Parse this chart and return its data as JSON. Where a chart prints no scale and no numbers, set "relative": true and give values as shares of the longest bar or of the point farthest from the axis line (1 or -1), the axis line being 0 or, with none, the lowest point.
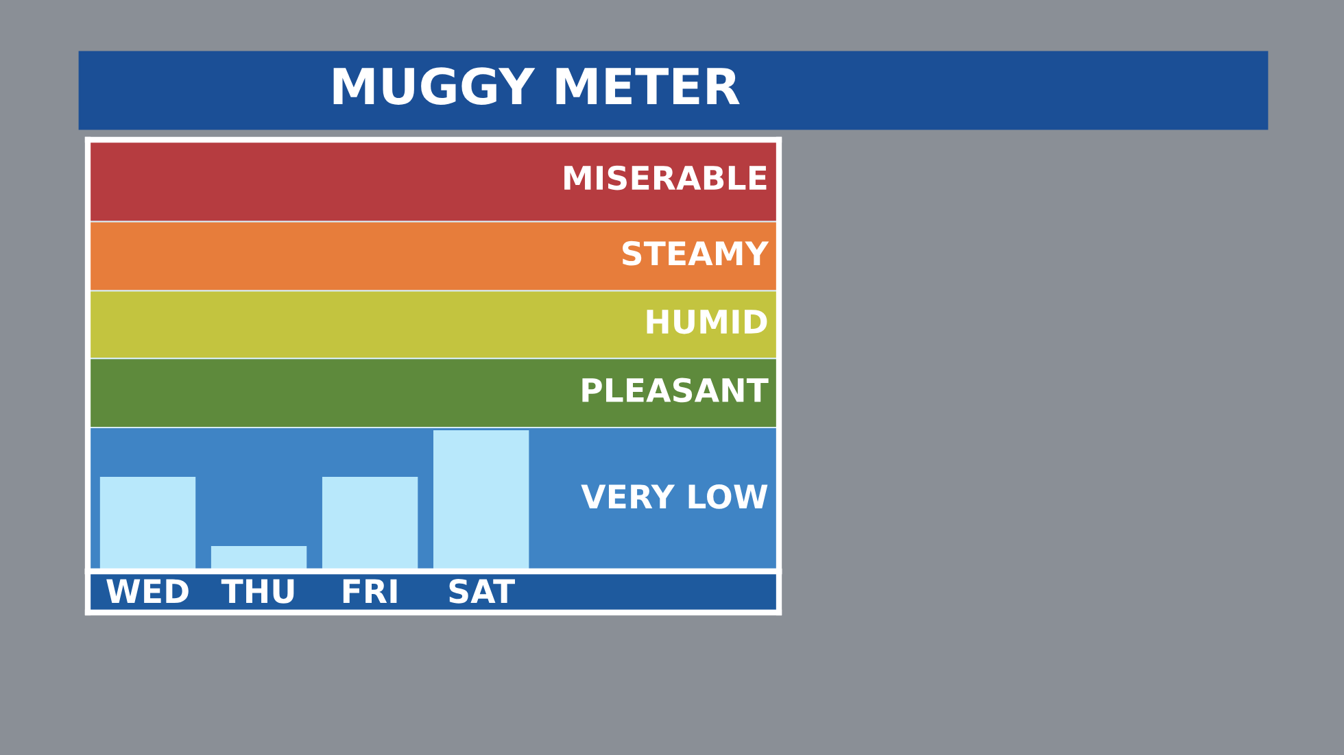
{
  "chart_data": {
    "type": "bar",
    "title": "MUGGY METER",
    "categories": [
      "WED",
      "THU",
      "FRI",
      "SAT"
    ],
    "values": [
      0.67,
      0.18,
      0.67,
      1
    ],
    "color": "#b8e8fb",
    "relative": true,
    "bands": [
      {
        "axis": "y",
        "from": 0,
        "to": 1.02,
        "label": "VERY LOW",
        "color": "#3f84c5"
      },
      {
        "axis": "y",
        "from": 1.02,
        "to": 1.51,
        "label": "PLEASANT",
        "color": "#5e8a3c"
      },
      {
        "axis": "y",
        "from": 1.51,
        "to": 1.99,
        "label": "HUMID",
        "color": "#c3c43f"
      },
      {
        "axis": "y",
        "from": 1.99,
        "to": 2.48,
        "label": "STEAMY",
        "color": "#e77d3b"
      },
      {
        "axis": "y",
        "from": 2.48,
        "to": 3.06,
        "label": "MISERABLE",
        "color": "#b63c40"
      }
    ]
  }
}
